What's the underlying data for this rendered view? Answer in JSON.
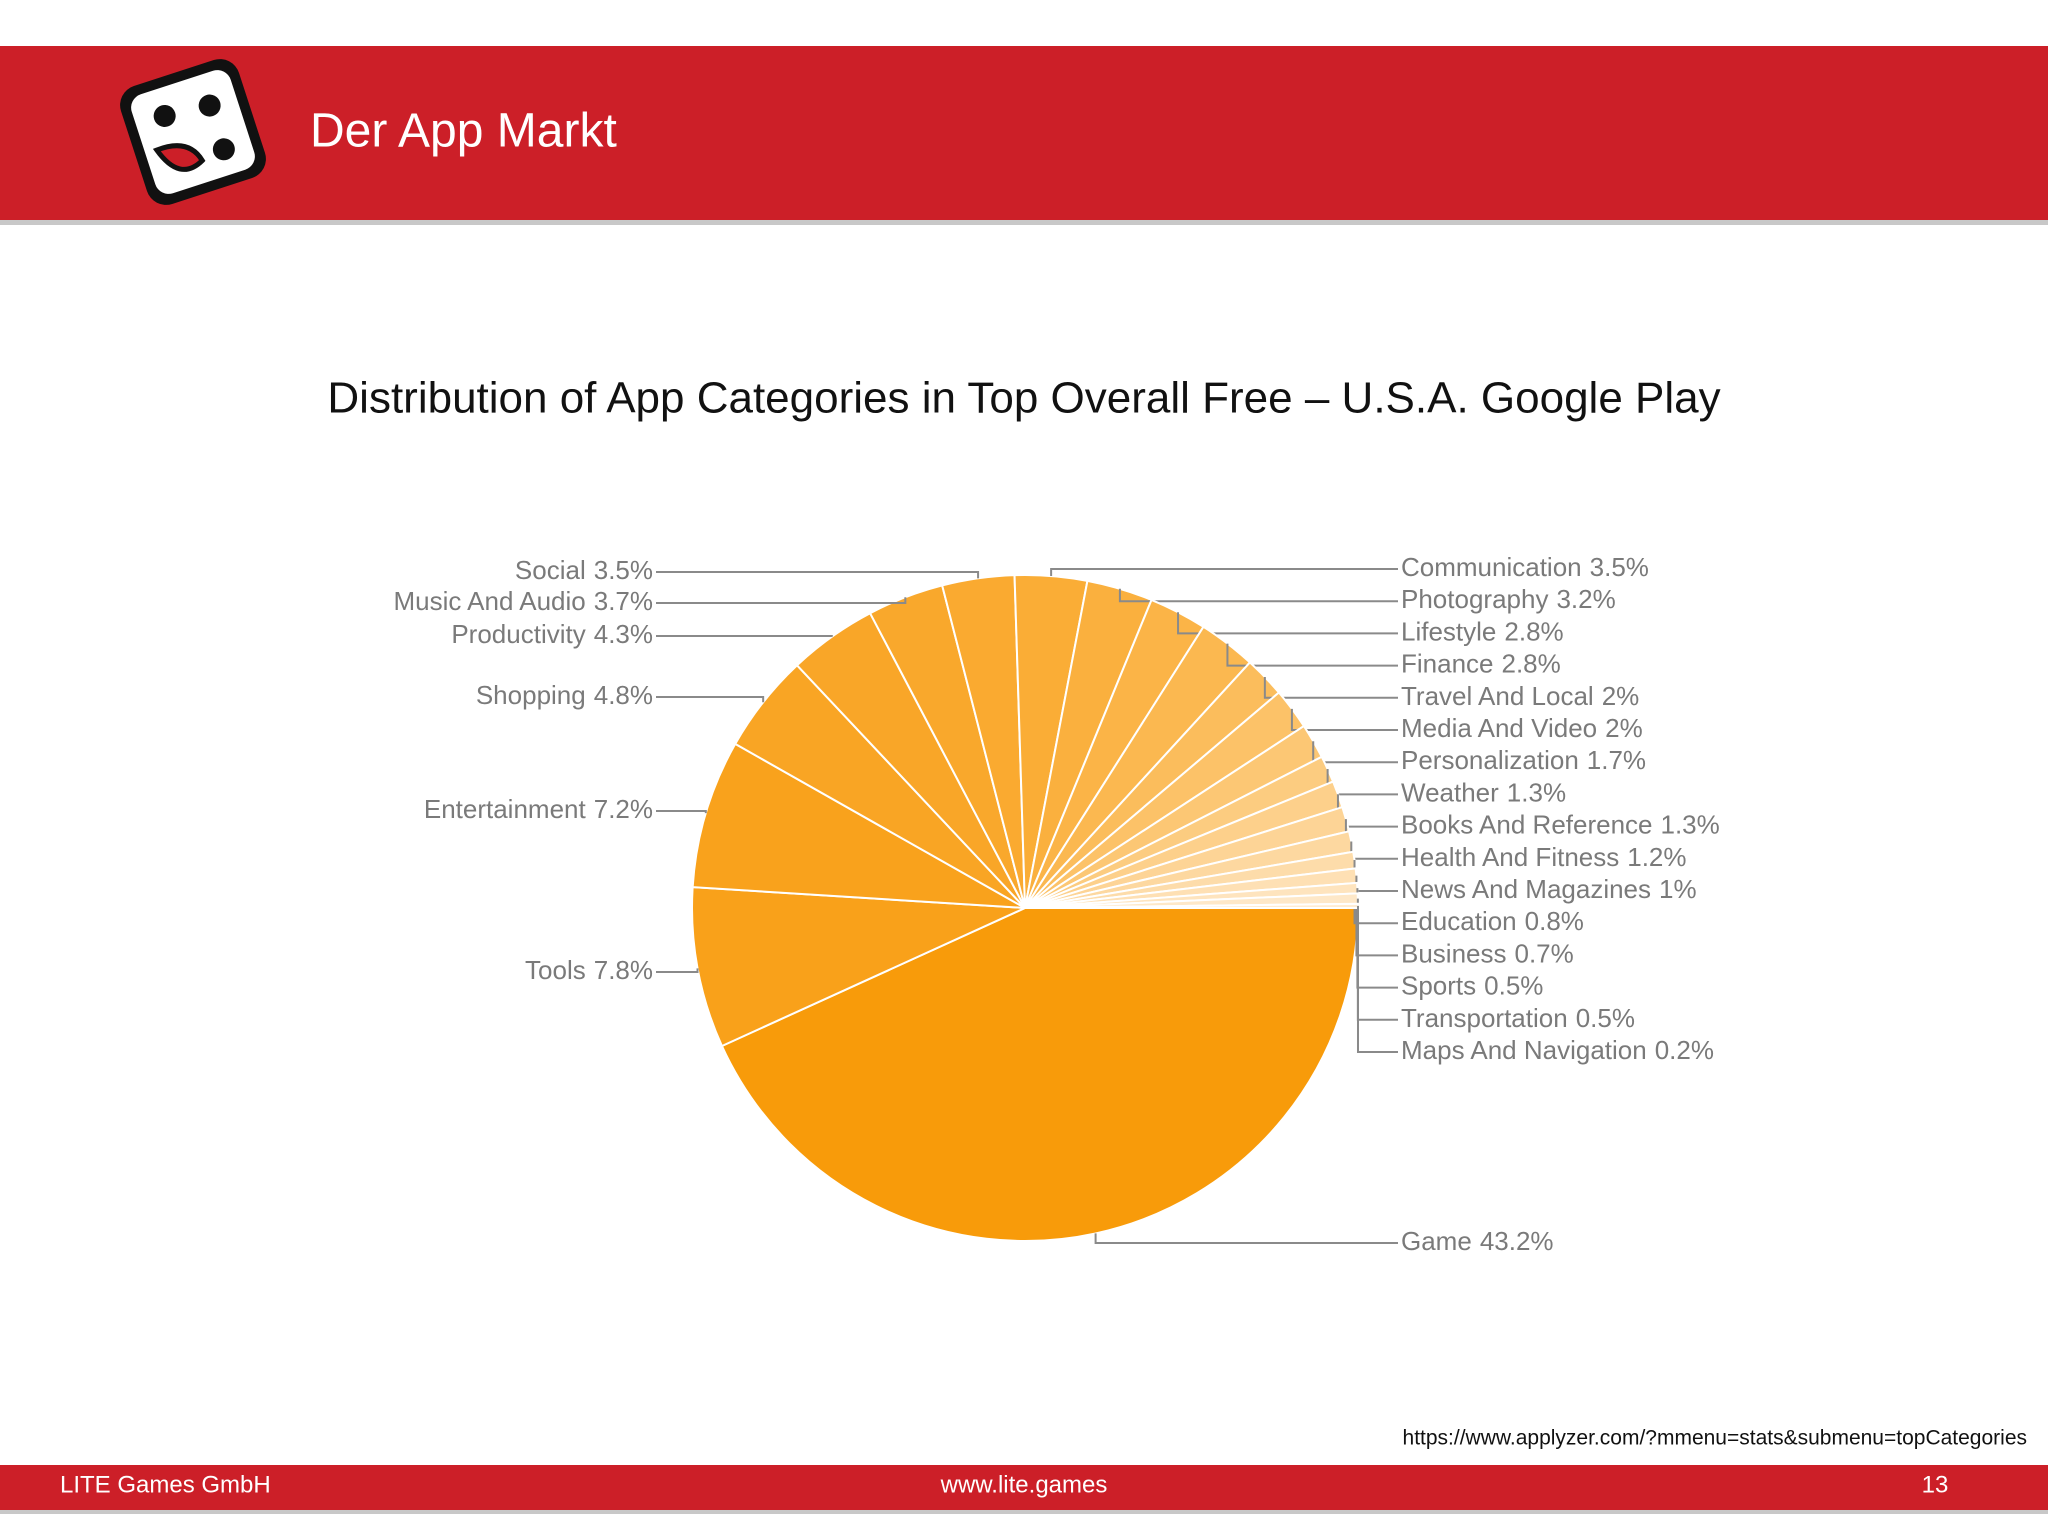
{
  "header": {
    "title": "Der App Markt"
  },
  "chart_data": {
    "type": "pie",
    "title": "Distribution of App Categories in Top Overall Free – U.S.A. Google Play",
    "categories": [
      "Game",
      "Tools",
      "Entertainment",
      "Shopping",
      "Productivity",
      "Music And Audio",
      "Social",
      "Communication",
      "Photography",
      "Lifestyle",
      "Finance",
      "Travel And Local",
      "Media And Video",
      "Personalization",
      "Weather",
      "Books And Reference",
      "Health And Fitness",
      "News And Magazines",
      "Education",
      "Business",
      "Sports",
      "Transportation",
      "Maps And Navigation"
    ],
    "values": [
      43.2,
      7.8,
      7.2,
      4.8,
      4.3,
      3.7,
      3.5,
      3.5,
      3.2,
      2.8,
      2.8,
      2,
      2,
      1.7,
      1.3,
      1.3,
      1.2,
      1,
      0.8,
      0.7,
      0.5,
      0.5,
      0.2
    ],
    "value_labels": [
      "43.2%",
      "7.8%",
      "7.2%",
      "4.8%",
      "4.3%",
      "3.7%",
      "3.5%",
      "3.5%",
      "3.2%",
      "2.8%",
      "2.8%",
      "2%",
      "2%",
      "1.7%",
      "1.3%",
      "1.3%",
      "1.2%",
      "1%",
      "0.8%",
      "0.7%",
      "0.5%",
      "0.5%",
      "0.2%"
    ],
    "colors": [
      "#f89b0a",
      "#f9a11a",
      "#f9a21c",
      "#f9a524",
      "#f9a628",
      "#f9a82c",
      "#faaa30",
      "#faad36",
      "#fab03e",
      "#fbb447",
      "#fbb850",
      "#fbbd5c",
      "#fcc268",
      "#fcc774",
      "#fccc80",
      "#fdd08b",
      "#fdd496",
      "#fdd8a0",
      "#fddcaa",
      "#fee0b4",
      "#fee4be",
      "#fee8c8",
      "#ffecd2"
    ]
  },
  "source": "https://www.applyzer.com/?mmenu=stats&submenu=topCategories",
  "footer": {
    "company": "LITE Games GmbH",
    "website": "www.lite.games",
    "page": "13"
  }
}
